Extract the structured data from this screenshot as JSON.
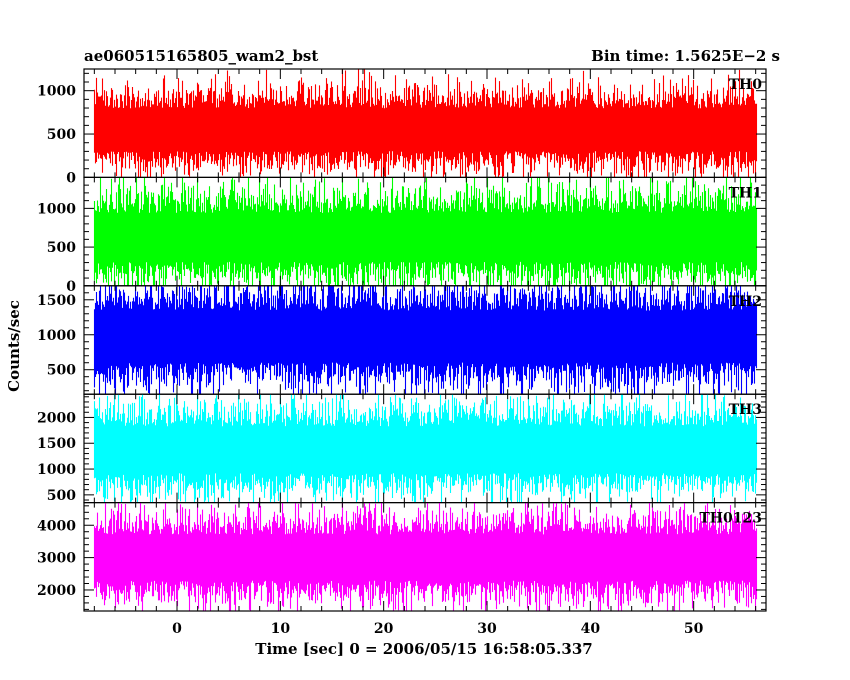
{
  "header": {
    "left_title": "ae060515165805_wam2_bst",
    "right_title": "Bin time: 1.5625E−2 s"
  },
  "chart_data": {
    "type": "line",
    "xlabel": "Time [sec] 0 = 2006/05/15 16:58:05.337",
    "ylabel": "Counts/sec",
    "xlim": [
      -9,
      57
    ],
    "x_ticks": [
      0,
      10,
      20,
      30,
      40,
      50
    ],
    "x_data_range": [
      -8,
      56
    ],
    "bin_time_s": 0.015625,
    "panels": [
      {
        "name": "TH0",
        "color": "#ff0000",
        "ylim": [
          0,
          1250
        ],
        "y_ticks": [
          0,
          500,
          1000
        ],
        "mean": 500,
        "typical_max": 1000,
        "typical_min": 100
      },
      {
        "name": "TH1",
        "color": "#00ff00",
        "ylim": [
          0,
          1400
        ],
        "y_ticks": [
          0,
          500,
          1000
        ],
        "mean": 550,
        "typical_max": 1200,
        "typical_min": 50
      },
      {
        "name": "TH2",
        "color": "#0000ff",
        "ylim": [
          150,
          1700
        ],
        "y_ticks": [
          500,
          1000,
          1500
        ],
        "mean": 900,
        "typical_max": 1650,
        "typical_min": 300
      },
      {
        "name": "TH3",
        "color": "#00ffff",
        "ylim": [
          350,
          2450
        ],
        "y_ticks": [
          500,
          1000,
          1500,
          2000
        ],
        "mean": 1250,
        "typical_max": 2200,
        "typical_min": 550
      },
      {
        "name": "TH0123",
        "color": "#ff00ff",
        "ylim": [
          1350,
          4700
        ],
        "y_ticks": [
          2000,
          3000,
          4000
        ],
        "mean": 2900,
        "typical_max": 4300,
        "typical_min": 1700
      }
    ]
  }
}
